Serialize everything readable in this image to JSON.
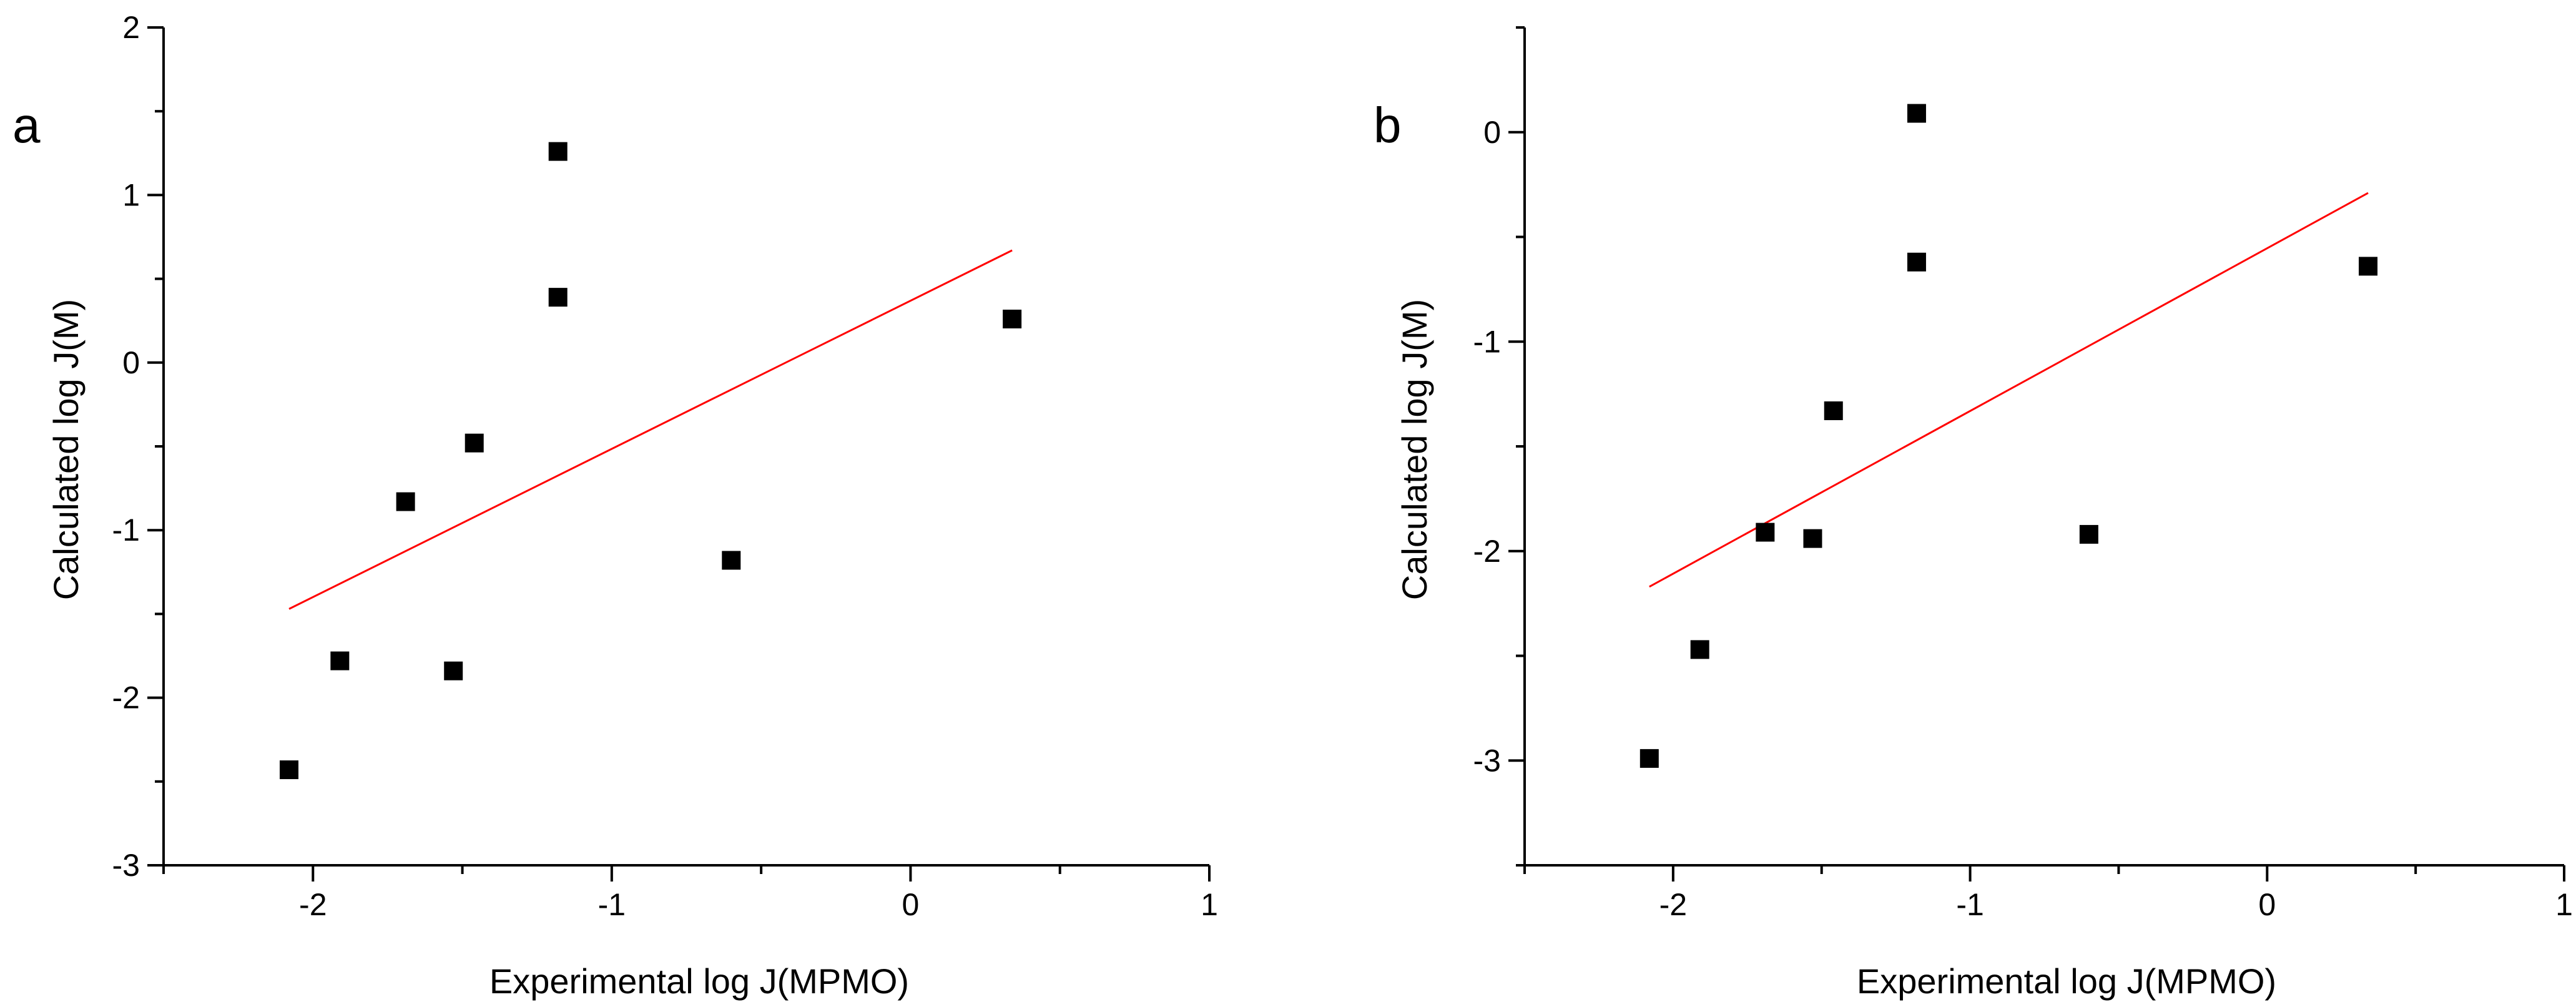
{
  "chart_data": [
    {
      "type": "scatter",
      "panel_label": "a",
      "xlabel": "Experimental log J(MPMO)",
      "ylabel": "Calculated log J(M)",
      "xlim": [
        -2.5,
        1
      ],
      "ylim": [
        -3,
        2
      ],
      "xticks": [
        -2,
        -1,
        0,
        1
      ],
      "xtick_labels": [
        "-2",
        "-1",
        "0",
        "1"
      ],
      "yticks": [
        -3,
        -2,
        -1,
        0,
        1,
        2
      ],
      "ytick_labels": [
        "-3",
        "-2",
        "-1",
        "0",
        "1",
        "2"
      ],
      "points": [
        {
          "x": -2.08,
          "y": -2.43
        },
        {
          "x": -1.91,
          "y": -1.78
        },
        {
          "x": -1.69,
          "y": -0.83
        },
        {
          "x": -1.53,
          "y": -1.84
        },
        {
          "x": -1.46,
          "y": -0.48
        },
        {
          "x": -1.18,
          "y": 1.26
        },
        {
          "x": -1.18,
          "y": 0.39
        },
        {
          "x": -0.6,
          "y": -1.18
        },
        {
          "x": 0.34,
          "y": 0.26
        }
      ],
      "fit_line": {
        "x": [
          -2.08,
          0.34
        ],
        "y": [
          -1.47,
          0.67
        ],
        "color": "#ff0000"
      }
    },
    {
      "type": "scatter",
      "panel_label": "b",
      "xlabel": "Experimental log J(MPMO)",
      "ylabel": "Calculated log J(M)",
      "xlim": [
        -2.5,
        1
      ],
      "ylim": [
        -3.5,
        0.5
      ],
      "xticks": [
        -2,
        -1,
        0,
        1
      ],
      "xtick_labels": [
        "-2",
        "-1",
        "0",
        "1"
      ],
      "yticks": [
        -3,
        -2,
        -1,
        0
      ],
      "ytick_labels": [
        "-3",
        "-2",
        "-1",
        "0"
      ],
      "points": [
        {
          "x": -2.08,
          "y": -2.99
        },
        {
          "x": -1.91,
          "y": -2.47
        },
        {
          "x": -1.69,
          "y": -1.91
        },
        {
          "x": -1.53,
          "y": -1.94
        },
        {
          "x": -1.46,
          "y": -1.33
        },
        {
          "x": -1.18,
          "y": 0.09
        },
        {
          "x": -1.18,
          "y": -0.62
        },
        {
          "x": -0.6,
          "y": -1.92
        },
        {
          "x": 0.34,
          "y": -0.64
        }
      ],
      "fit_line": {
        "x": [
          -2.08,
          0.34
        ],
        "y": [
          -2.17,
          -0.29
        ],
        "color": "#ff0000"
      }
    }
  ]
}
